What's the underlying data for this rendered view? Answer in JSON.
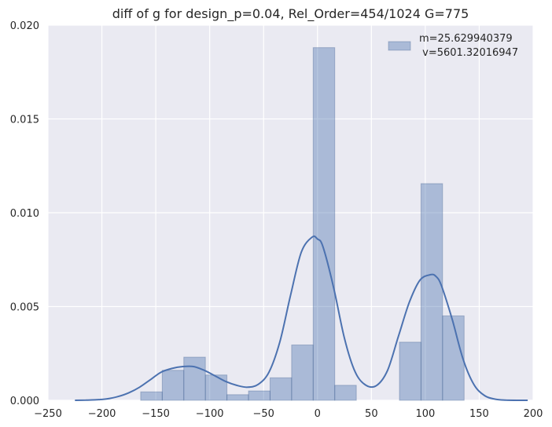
{
  "chart_data": {
    "type": "bar",
    "title": "diff of g for design_p=0.04, Rel_Order=454/1024 G=775",
    "xlabel": "",
    "ylabel": "",
    "xlim": [
      -250,
      200
    ],
    "ylim": [
      0,
      0.02
    ],
    "x_ticks": [
      -250,
      -200,
      -150,
      -100,
      -50,
      0,
      50,
      100,
      150,
      200
    ],
    "x_tick_labels": [
      "−250",
      "−200",
      "−150",
      "−100",
      "−50",
      "0",
      "50",
      "100",
      "150",
      "200"
    ],
    "y_ticks": [
      0,
      0.005,
      0.01,
      0.015,
      0.02
    ],
    "y_tick_labels": [
      "0.000",
      "0.005",
      "0.010",
      "0.015",
      "0.020"
    ],
    "grid": true,
    "legend_position": "top-right",
    "legend": {
      "line1": "m=25.629940379",
      "line2": " v=5601.32016947"
    },
    "histogram": {
      "bin_edges": [
        -164,
        -144,
        -124,
        -104,
        -84,
        -64,
        -44,
        -24,
        -4,
        16,
        36,
        56,
        76,
        96,
        116,
        136
      ],
      "densities": [
        0.00045,
        0.0016,
        0.0023,
        0.00135,
        0.0003,
        0.0005,
        0.0012,
        0.00295,
        0.0188,
        0.0008,
        0,
        0,
        0.0031,
        0.01155,
        0.0045
      ]
    },
    "kde": {
      "x": [
        -225,
        -215,
        -205,
        -195,
        -185,
        -175,
        -165,
        -155,
        -145,
        -135,
        -125,
        -115,
        -105,
        -95,
        -85,
        -75,
        -65,
        -55,
        -45,
        -35,
        -25,
        -15,
        -5,
        0,
        5,
        15,
        25,
        35,
        45,
        55,
        65,
        75,
        85,
        95,
        105,
        110,
        115,
        125,
        135,
        145,
        155,
        165,
        175,
        185,
        195
      ],
      "y": [
        0,
        1e-05,
        3e-05,
        8e-05,
        0.0002,
        0.0004,
        0.0007,
        0.0011,
        0.0015,
        0.0017,
        0.0018,
        0.0018,
        0.0016,
        0.0013,
        0.001,
        0.0008,
        0.0007,
        0.00085,
        0.0015,
        0.0031,
        0.0056,
        0.0079,
        0.0087,
        0.0086,
        0.0082,
        0.006,
        0.0033,
        0.0015,
        0.0008,
        0.0008,
        0.0016,
        0.0034,
        0.0052,
        0.0064,
        0.0067,
        0.0066,
        0.0061,
        0.0043,
        0.0022,
        0.00085,
        0.00025,
        6e-05,
        1e-05,
        0,
        0
      ]
    },
    "colors": {
      "background": "#EAEAF2",
      "grid": "#FFFFFF",
      "bar_fill": "#4C72B0",
      "bar_opacity": 0.4,
      "line": "#4C72B0"
    }
  }
}
